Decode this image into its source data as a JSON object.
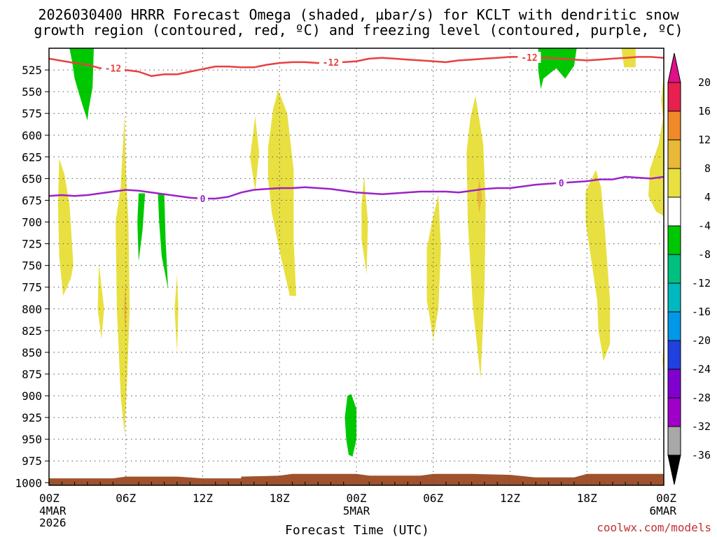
{
  "chart_data": {
    "type": "heatmap",
    "title_lines": [
      "2026030400 HRRR Forecast Omega (shaded, µbar/s) for KCLT with dendritic snow",
      "growth region (contoured, red, ºC) and freezing level (contoured, purple, ºC)"
    ],
    "xlabel": "Forecast Time (UTC)",
    "ylabel": "",
    "credit": "coolwx.com/models",
    "x_ticks": [
      {
        "h": 0,
        "label": "00Z",
        "sub": [
          "4MAR",
          "2026"
        ]
      },
      {
        "h": 6,
        "label": "06Z",
        "sub": []
      },
      {
        "h": 12,
        "label": "12Z",
        "sub": []
      },
      {
        "h": 18,
        "label": "18Z",
        "sub": []
      },
      {
        "h": 24,
        "label": "00Z",
        "sub": [
          "5MAR"
        ]
      },
      {
        "h": 30,
        "label": "06Z",
        "sub": []
      },
      {
        "h": 36,
        "label": "12Z",
        "sub": []
      },
      {
        "h": 42,
        "label": "18Z",
        "sub": []
      },
      {
        "h": 48,
        "label": "00Z",
        "sub": [
          "6MAR"
        ]
      }
    ],
    "xlim": [
      0,
      48
    ],
    "y_ticks": [
      525,
      550,
      575,
      600,
      625,
      650,
      675,
      700,
      725,
      750,
      775,
      800,
      825,
      850,
      875,
      900,
      925,
      950,
      975,
      1000
    ],
    "ylim": [
      500,
      1003
    ],
    "grid": true,
    "colorbar": {
      "labels": [
        "20",
        "16",
        "12",
        "8",
        "4",
        "-4",
        "-8",
        "-12",
        "-16",
        "-20",
        "-24",
        "-28",
        "-32",
        "-36"
      ],
      "colors": [
        "#e82050",
        "#f08a28",
        "#e8b838",
        "#e8e040",
        "#ffffff",
        "#00c800",
        "#00c080",
        "#00b8c0",
        "#0098e8",
        "#2040e0",
        "#8000d0",
        "#a000c8",
        "#a8a8a8"
      ],
      "top_color": "#e0108a",
      "bottom_color": "#000000"
    },
    "contours": [
      {
        "name": "-12",
        "color": "#e84040",
        "label_h": [
          5,
          22,
          37.5
        ],
        "points": [
          [
            0,
            512
          ],
          [
            2,
            517
          ],
          [
            3,
            519
          ],
          [
            4,
            523
          ],
          [
            5,
            523
          ],
          [
            6,
            525
          ],
          [
            7,
            527
          ],
          [
            8,
            532
          ],
          [
            9,
            530
          ],
          [
            10,
            530
          ],
          [
            11,
            527
          ],
          [
            12,
            524
          ],
          [
            13,
            521
          ],
          [
            14,
            521
          ],
          [
            15,
            522
          ],
          [
            16,
            522
          ],
          [
            17,
            519
          ],
          [
            18,
            517
          ],
          [
            19,
            516
          ],
          [
            20,
            516
          ],
          [
            21,
            517
          ],
          [
            22,
            516
          ],
          [
            23,
            516
          ],
          [
            24,
            515
          ],
          [
            25,
            512
          ],
          [
            26,
            511
          ],
          [
            27,
            512
          ],
          [
            28,
            513
          ],
          [
            29,
            514
          ],
          [
            30,
            515
          ],
          [
            31,
            516
          ],
          [
            32,
            514
          ],
          [
            33,
            513
          ],
          [
            34,
            512
          ],
          [
            35,
            511
          ],
          [
            36,
            510
          ],
          [
            37,
            510
          ],
          [
            38,
            511
          ],
          [
            39,
            511
          ],
          [
            40,
            512
          ],
          [
            41,
            513
          ],
          [
            42,
            514
          ],
          [
            43,
            513
          ],
          [
            44,
            512
          ],
          [
            45,
            511
          ],
          [
            46,
            510
          ],
          [
            47,
            510
          ],
          [
            48,
            511
          ]
        ]
      },
      {
        "name": "0",
        "color": "#9b22c8",
        "label_h": [
          12,
          40
        ],
        "points": [
          [
            0,
            670
          ],
          [
            1,
            669
          ],
          [
            2,
            670
          ],
          [
            3,
            669
          ],
          [
            4,
            667
          ],
          [
            5,
            665
          ],
          [
            6,
            663
          ],
          [
            7,
            664
          ],
          [
            8,
            666
          ],
          [
            9,
            668
          ],
          [
            10,
            670
          ],
          [
            11,
            672
          ],
          [
            12,
            673
          ],
          [
            13,
            673
          ],
          [
            14,
            671
          ],
          [
            15,
            666
          ],
          [
            16,
            663
          ],
          [
            17,
            662
          ],
          [
            18,
            661
          ],
          [
            19,
            661
          ],
          [
            20,
            660
          ],
          [
            21,
            661
          ],
          [
            22,
            662
          ],
          [
            23,
            664
          ],
          [
            24,
            666
          ],
          [
            25,
            667
          ],
          [
            26,
            668
          ],
          [
            27,
            667
          ],
          [
            28,
            666
          ],
          [
            29,
            665
          ],
          [
            30,
            665
          ],
          [
            31,
            665
          ],
          [
            32,
            666
          ],
          [
            33,
            664
          ],
          [
            34,
            662
          ],
          [
            35,
            661
          ],
          [
            36,
            661
          ],
          [
            37,
            659
          ],
          [
            38,
            657
          ],
          [
            39,
            656
          ],
          [
            40,
            655
          ],
          [
            41,
            654
          ],
          [
            42,
            653
          ],
          [
            43,
            651
          ],
          [
            44,
            651
          ],
          [
            45,
            648
          ],
          [
            46,
            649
          ],
          [
            47,
            650
          ],
          [
            48,
            648
          ]
        ]
      }
    ],
    "shaded_regions": [
      {
        "value": -6,
        "color": "#00c800",
        "points": [
          [
            1.6,
            500
          ],
          [
            3.5,
            500
          ],
          [
            3.4,
            545
          ],
          [
            3.1,
            570
          ],
          [
            3.0,
            583
          ],
          [
            2.6,
            565
          ],
          [
            2.0,
            535
          ],
          [
            1.8,
            515
          ]
        ]
      },
      {
        "value": -6,
        "color": "#00c800",
        "points": [
          [
            38.2,
            500
          ],
          [
            41.2,
            500
          ],
          [
            41.0,
            520
          ],
          [
            40.3,
            535
          ],
          [
            39.6,
            523
          ],
          [
            38.6,
            535
          ],
          [
            38.4,
            547
          ],
          [
            38.2,
            525
          ]
        ]
      },
      {
        "value": -6,
        "color": "#00c800",
        "points": [
          [
            7.0,
            667
          ],
          [
            7.5,
            667
          ],
          [
            7.3,
            710
          ],
          [
            7.0,
            745
          ],
          [
            6.9,
            700
          ]
        ]
      },
      {
        "value": -6,
        "color": "#00c800",
        "points": [
          [
            8.5,
            667
          ],
          [
            9.0,
            667
          ],
          [
            9.1,
            720
          ],
          [
            9.3,
            777
          ],
          [
            8.8,
            740
          ],
          [
            8.6,
            700
          ]
        ]
      },
      {
        "value": -6,
        "color": "#00c800",
        "points": [
          [
            23.3,
            900
          ],
          [
            23.6,
            898
          ],
          [
            24.0,
            915
          ],
          [
            24.0,
            950
          ],
          [
            23.7,
            970
          ],
          [
            23.4,
            968
          ],
          [
            23.2,
            950
          ],
          [
            23.1,
            925
          ]
        ]
      },
      {
        "value": 6,
        "color": "#e8e040",
        "points": [
          [
            44.7,
            500
          ],
          [
            45.8,
            500
          ],
          [
            45.8,
            522
          ],
          [
            44.9,
            522
          ]
        ]
      },
      {
        "value": 6,
        "color": "#e8e040",
        "points": [
          [
            0.8,
            627
          ],
          [
            1.2,
            645
          ],
          [
            1.6,
            680
          ],
          [
            1.9,
            750
          ],
          [
            1.7,
            765
          ],
          [
            1.1,
            785
          ],
          [
            0.8,
            740
          ],
          [
            0.7,
            680
          ]
        ]
      },
      {
        "value": 6,
        "color": "#e8e040",
        "points": [
          [
            3.9,
            748
          ],
          [
            4.3,
            800
          ],
          [
            4.1,
            835
          ],
          [
            3.8,
            800
          ]
        ]
      },
      {
        "value": 6,
        "color": "#e8e040",
        "points": [
          [
            5.9,
            575
          ],
          [
            6.0,
            640
          ],
          [
            6.2,
            700
          ],
          [
            6.3,
            800
          ],
          [
            6.1,
            880
          ],
          [
            5.9,
            945
          ],
          [
            5.6,
            900
          ],
          [
            5.3,
            800
          ],
          [
            5.2,
            700
          ],
          [
            5.6,
            660
          ]
        ]
      },
      {
        "value": 6,
        "color": "#e8e040",
        "points": [
          [
            10.0,
            760
          ],
          [
            10.1,
            800
          ],
          [
            10.0,
            850
          ],
          [
            9.8,
            800
          ]
        ]
      },
      {
        "value": 6,
        "color": "#e8e040",
        "points": [
          [
            16.1,
            578
          ],
          [
            16.4,
            620
          ],
          [
            16.1,
            665
          ],
          [
            15.7,
            625
          ]
        ]
      },
      {
        "value": 6,
        "color": "#e8e040",
        "points": [
          [
            17.9,
            548
          ],
          [
            18.6,
            575
          ],
          [
            19.1,
            640
          ],
          [
            19.1,
            720
          ],
          [
            19.3,
            785
          ],
          [
            18.8,
            785
          ],
          [
            18.1,
            740
          ],
          [
            17.4,
            690
          ],
          [
            17.1,
            650
          ],
          [
            17.1,
            615
          ],
          [
            17.5,
            570
          ]
        ]
      },
      {
        "value": 6,
        "color": "#e8e040",
        "points": [
          [
            24.6,
            647
          ],
          [
            24.9,
            700
          ],
          [
            24.8,
            760
          ],
          [
            24.4,
            720
          ],
          [
            24.4,
            680
          ]
        ]
      },
      {
        "value": 6,
        "color": "#e8e040",
        "points": [
          [
            30.4,
            668
          ],
          [
            30.6,
            730
          ],
          [
            30.4,
            800
          ],
          [
            30.0,
            835
          ],
          [
            29.5,
            790
          ],
          [
            29.5,
            730
          ],
          [
            29.9,
            700
          ]
        ]
      },
      {
        "value": 6,
        "color": "#e8e040",
        "points": [
          [
            33.3,
            555
          ],
          [
            33.9,
            610
          ],
          [
            34.1,
            680
          ],
          [
            34.0,
            780
          ],
          [
            33.7,
            880
          ],
          [
            33.1,
            800
          ],
          [
            32.7,
            700
          ],
          [
            32.6,
            620
          ],
          [
            32.9,
            580
          ]
        ]
      },
      {
        "value": 6,
        "color": "#e8e040",
        "points": [
          [
            42.7,
            640
          ],
          [
            43.1,
            660
          ],
          [
            43.4,
            710
          ],
          [
            43.8,
            790
          ],
          [
            43.8,
            840
          ],
          [
            43.3,
            860
          ],
          [
            42.9,
            825
          ],
          [
            42.8,
            790
          ],
          [
            42.4,
            750
          ],
          [
            41.9,
            700
          ],
          [
            41.9,
            665
          ]
        ]
      },
      {
        "value": 6,
        "color": "#e8e040",
        "points": [
          [
            48,
            575
          ],
          [
            48,
            693
          ],
          [
            47.4,
            688
          ],
          [
            46.8,
            670
          ],
          [
            46.9,
            640
          ],
          [
            47.6,
            610
          ]
        ]
      },
      {
        "value": 6,
        "color": "#e8e040",
        "points": [
          [
            48,
            530
          ],
          [
            48,
            590
          ],
          [
            47.8,
            560
          ]
        ]
      },
      {
        "value": 6,
        "color": "#e8e040",
        "points": [
          [
            48,
            835
          ],
          [
            48,
            880
          ],
          [
            47.9,
            860
          ]
        ]
      },
      {
        "value": 10,
        "color": "#e8b838",
        "points": [
          [
            33.6,
            650
          ],
          [
            33.8,
            670
          ],
          [
            33.6,
            690
          ],
          [
            33.4,
            670
          ]
        ]
      },
      {
        "value": 10,
        "color": "#e8b838",
        "points": [
          [
            5.95,
            770
          ],
          [
            6.05,
            800
          ],
          [
            5.95,
            830
          ],
          [
            5.85,
            800
          ]
        ]
      }
    ],
    "terrain": {
      "color": "#a0522d",
      "points": [
        [
          0,
          995
        ],
        [
          5,
          995
        ],
        [
          6,
          993
        ],
        [
          10,
          993
        ],
        [
          12,
          995
        ],
        [
          15,
          995
        ],
        [
          15,
          993
        ],
        [
          18,
          992
        ],
        [
          19,
          990
        ],
        [
          24,
          990
        ],
        [
          25,
          992
        ],
        [
          29,
          992
        ],
        [
          30,
          990
        ],
        [
          33,
          990
        ],
        [
          36,
          991
        ],
        [
          38,
          994
        ],
        [
          41,
          994
        ],
        [
          42,
          990
        ],
        [
          48,
          990
        ]
      ]
    }
  }
}
